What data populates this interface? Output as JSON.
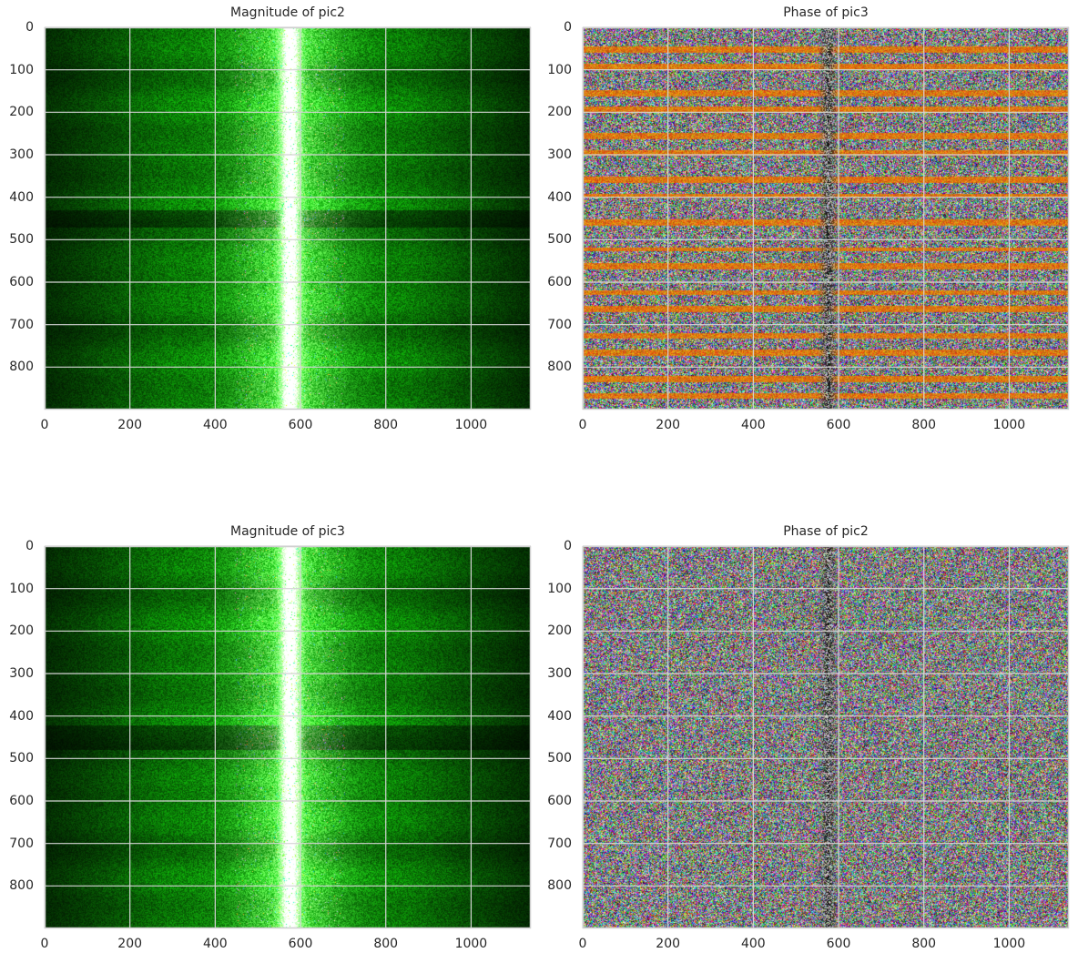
{
  "chart_data": [
    {
      "type": "heatmap",
      "title": "Magnitude of pic2",
      "xlim": [
        0,
        1140
      ],
      "ylim": [
        900,
        0
      ],
      "xticks": [
        0,
        200,
        400,
        600,
        800,
        1000
      ],
      "yticks": [
        0,
        100,
        200,
        300,
        400,
        500,
        600,
        700,
        800
      ],
      "grid": true,
      "style": "magnitude",
      "bright_column_center_x": 575,
      "dark_band_y": [
        430,
        470
      ]
    },
    {
      "type": "heatmap",
      "title": "Phase of pic3",
      "xlim": [
        0,
        1140
      ],
      "ylim": [
        900,
        0
      ],
      "xticks": [
        0,
        200,
        400,
        600,
        800,
        1000
      ],
      "yticks": [
        0,
        100,
        200,
        300,
        400,
        500,
        600,
        700,
        800
      ],
      "grid": true,
      "style": "phase",
      "bright_column_center_x": 575
    },
    {
      "type": "heatmap",
      "title": "Magnitude of pic3",
      "xlim": [
        0,
        1140
      ],
      "ylim": [
        900,
        0
      ],
      "xticks": [
        0,
        200,
        400,
        600,
        800,
        1000
      ],
      "yticks": [
        0,
        100,
        200,
        300,
        400,
        500,
        600,
        700,
        800
      ],
      "grid": true,
      "style": "magnitude",
      "bright_column_center_x": 575,
      "dark_band_y": [
        420,
        480
      ]
    },
    {
      "type": "heatmap",
      "title": "Phase of pic2",
      "xlim": [
        0,
        1140
      ],
      "ylim": [
        900,
        0
      ],
      "xticks": [
        0,
        200,
        400,
        600,
        800,
        1000
      ],
      "yticks": [
        0,
        100,
        200,
        300,
        400,
        500,
        600,
        700,
        800
      ],
      "grid": true,
      "style": "phase",
      "bright_column_center_x": 575
    }
  ],
  "colors": {
    "grid": "#d4d4d4",
    "frame": "#cfcfcf",
    "text": "#262626",
    "magnitude_base": "#1fe22f"
  }
}
